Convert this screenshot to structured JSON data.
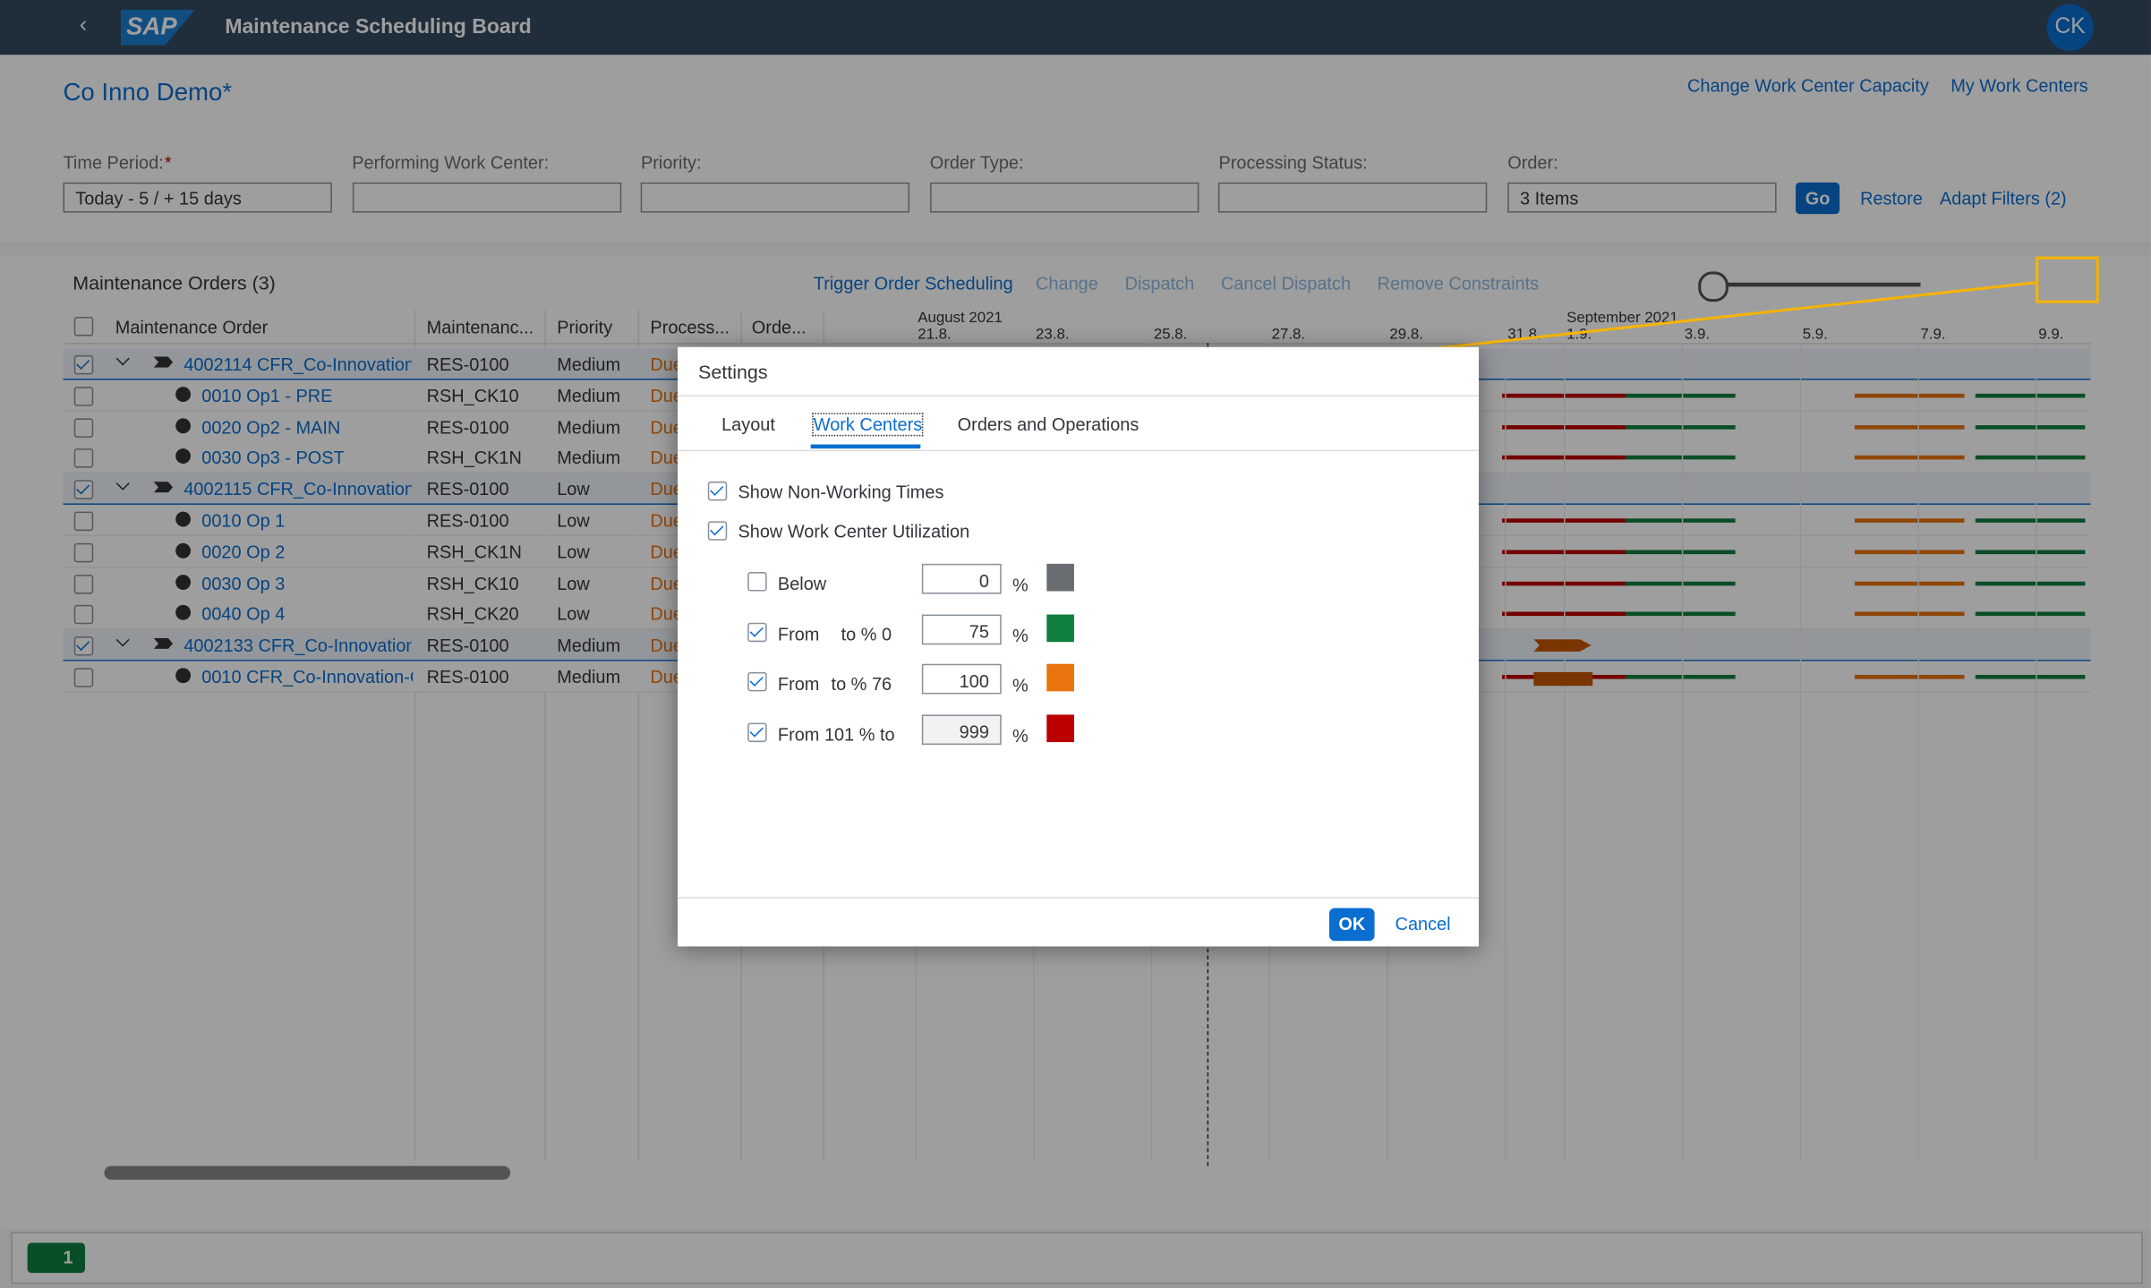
{
  "shell": {
    "logo": "SAP",
    "title": "Maintenance Scheduling Board",
    "avatar": "CK"
  },
  "header": {
    "variant": "Co Inno Demo*",
    "links": [
      "Change Work Center Capacity",
      "My Work Centers"
    ]
  },
  "filters": [
    {
      "label": "Time Period:",
      "required": "*",
      "value": "Today - 5 / + 15 days"
    },
    {
      "label": "Performing Work Center:"
    },
    {
      "label": "Priority:"
    },
    {
      "label": "Order Type:"
    },
    {
      "label": "Processing Status:"
    },
    {
      "label": "Order:",
      "value": "3 Items"
    }
  ],
  "filter_buttons": {
    "go": "Go",
    "restore": "Restore",
    "adapt": "Adapt Filters (2)"
  },
  "toolbar": {
    "title": "Maintenance Orders (3)",
    "actions": [
      "Trigger Order Scheduling",
      "Change",
      "Dispatch",
      "Cancel Dispatch",
      "Remove Constraints"
    ]
  },
  "table": {
    "columns": [
      "Maintenance Order",
      "Maintenanc...",
      "Priority",
      "Process...",
      "Orde..."
    ],
    "rows": [
      {
        "order": true,
        "checked": true,
        "name": "4002114 CFR_Co-Innovation-",
        "wc": "RES-0100",
        "priority": "Medium",
        "status": "Due"
      },
      {
        "name": "0010 Op1 - PRE",
        "wc": "RSH_CK10",
        "priority": "Medium",
        "status": "Due"
      },
      {
        "name": "0020 Op2 - MAIN",
        "wc": "RES-0100",
        "priority": "Medium",
        "status": "Due"
      },
      {
        "name": "0030 Op3 - POST",
        "wc": "RSH_CK1N",
        "priority": "Medium",
        "status": "Due"
      },
      {
        "order": true,
        "checked": true,
        "name": "4002115 CFR_Co-Innovation-",
        "wc": "RES-0100",
        "priority": "Low",
        "status": "Due"
      },
      {
        "name": "0010 Op 1",
        "wc": "RES-0100",
        "priority": "Low",
        "status": "Due"
      },
      {
        "name": "0020 Op 2",
        "wc": "RSH_CK1N",
        "priority": "Low",
        "status": "Due"
      },
      {
        "name": "0030 Op 3",
        "wc": "RSH_CK10",
        "priority": "Low",
        "status": "Due"
      },
      {
        "name": "0040 Op 4",
        "wc": "RSH_CK20",
        "priority": "Low",
        "status": "Due"
      },
      {
        "order": true,
        "checked": true,
        "name": "4002133 CFR_Co-Innovation-",
        "wc": "RES-0100",
        "priority": "Medium",
        "status": "Due"
      },
      {
        "name": "0010 CFR_Co-Innovation-C",
        "wc": "RES-0100",
        "priority": "Medium",
        "status": "Due"
      }
    ]
  },
  "timeline": {
    "months": [
      "August 2021",
      "September 2021"
    ],
    "days": [
      "21.8.",
      "23.8.",
      "25.8.",
      "27.8.",
      "29.8.",
      "31.8.",
      "1.9.",
      "3.9.",
      "5.9.",
      "7.9.",
      "9.9."
    ]
  },
  "dialog": {
    "title": "Settings",
    "tabs": [
      "Layout",
      "Work Centers",
      "Orders and Operations"
    ],
    "selected_tab": 1,
    "options": [
      {
        "label": "Show Non-Working Times",
        "checked": true
      },
      {
        "label": "Show Work Center Utilization",
        "checked": true
      }
    ],
    "ranges": [
      {
        "label": "Below",
        "value": "0",
        "unit": "%",
        "color": "#6a6d70",
        "checked": false
      },
      {
        "label": "From",
        "from": "0 % to",
        "value": "75",
        "unit": "%",
        "color": "#107e3e",
        "checked": true
      },
      {
        "label": "From",
        "from": "76 % to",
        "value": "100",
        "unit": "%",
        "color": "#e9730c",
        "checked": true
      },
      {
        "label": "From 101 % to",
        "value": "999",
        "unit": "%",
        "color": "#bb0000",
        "checked": true
      }
    ],
    "ok": "OK",
    "cancel": "Cancel"
  },
  "status": {
    "count": "1"
  }
}
